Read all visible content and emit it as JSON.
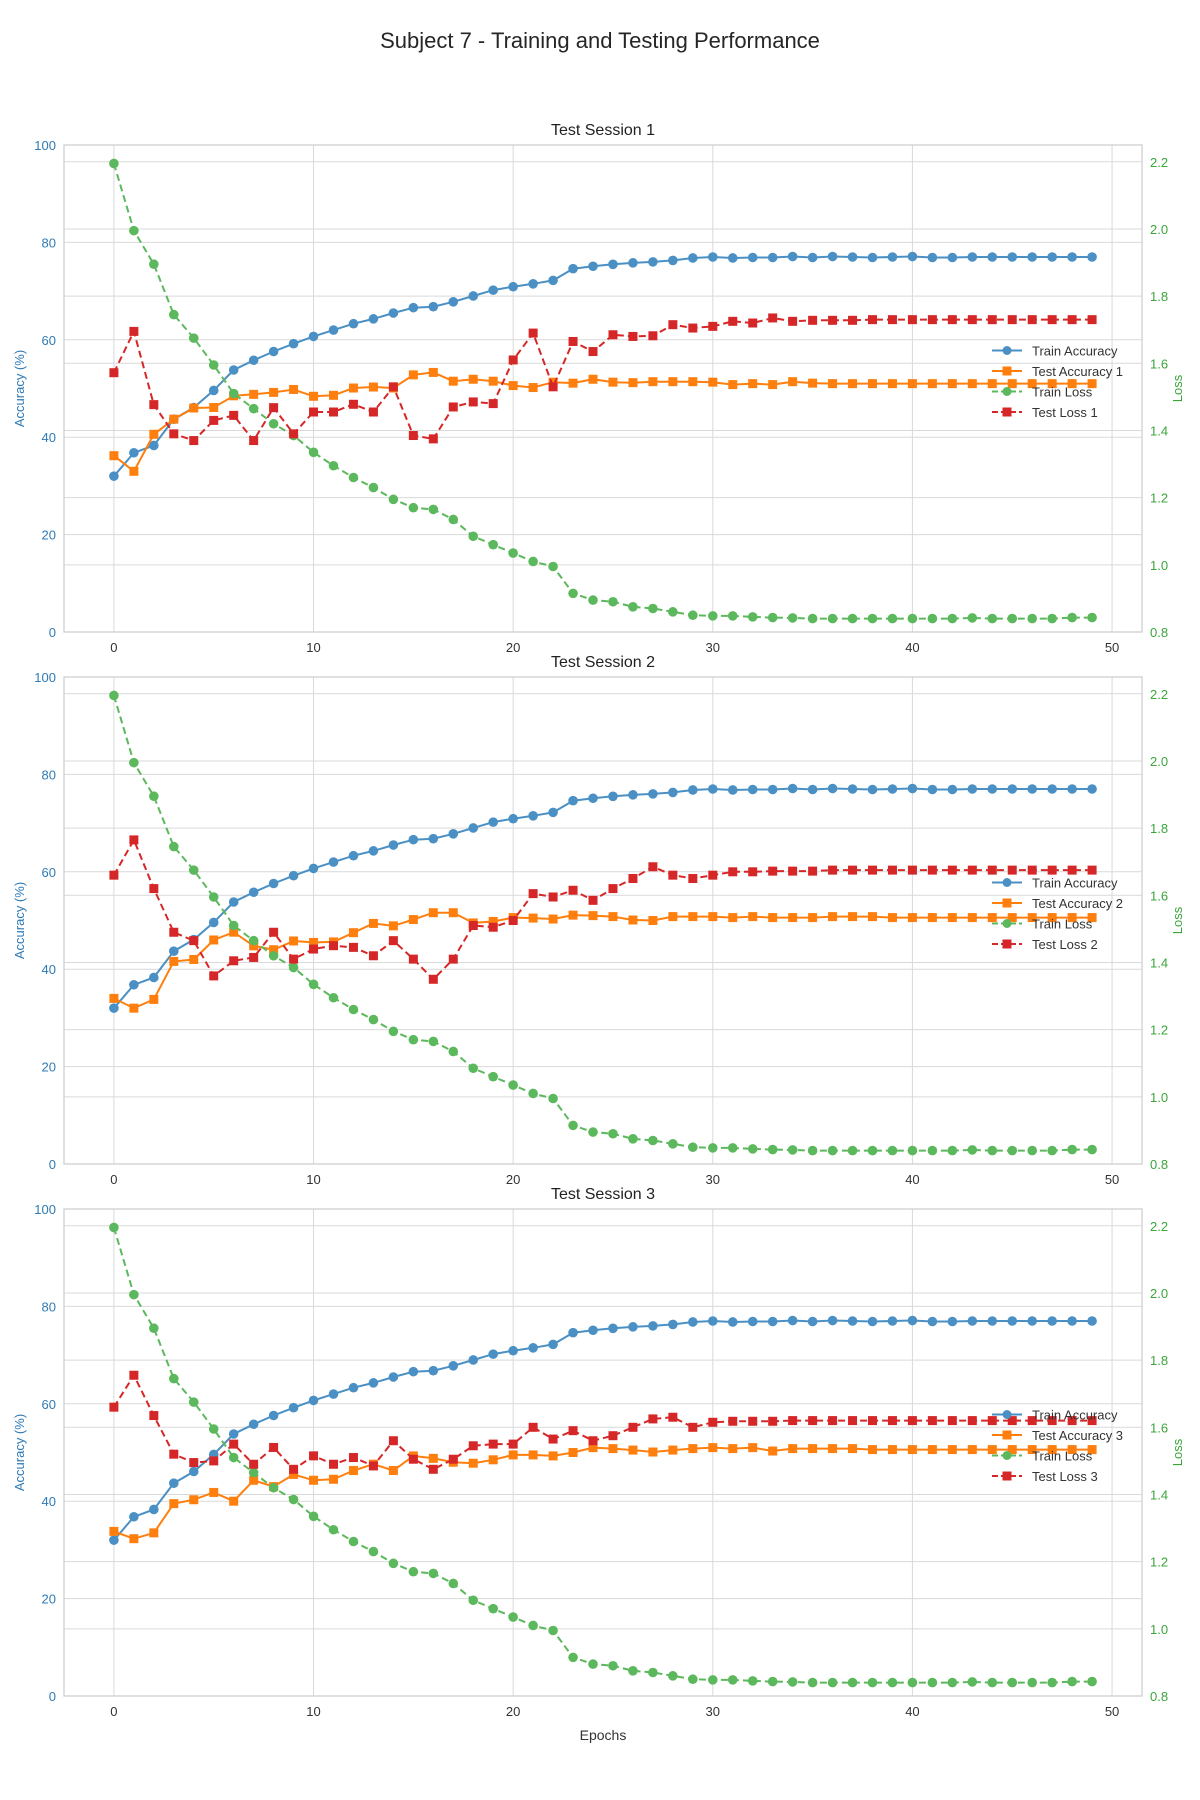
{
  "figure": {
    "title": "Subject 7 - Training and Testing Performance",
    "colors": {
      "train_accuracy": "#4a90c4",
      "test_accuracy": "#ff7f0e",
      "train_loss": "#5cb85c",
      "test_loss": "#d62728",
      "left_axis": "#2f7bb5",
      "right_axis": "#3aa63a",
      "grid": "#d9d9d9",
      "frame": "#cccccc"
    }
  },
  "chart_data": [
    {
      "type": "line",
      "title": "Test Session 1",
      "xlabel": "",
      "ylabel": "Accuracy (%)",
      "y2label": "Loss",
      "xlim": [
        -2.5,
        51.5
      ],
      "ylim": [
        0,
        100
      ],
      "y2lim": [
        0.8,
        2.25
      ],
      "xticks": [
        0,
        10,
        20,
        30,
        40,
        50
      ],
      "yticks": [
        0,
        20,
        40,
        60,
        80,
        100
      ],
      "y2ticks": [
        0.8,
        1.0,
        1.2,
        1.4,
        1.6,
        1.8,
        2.0,
        2.2
      ],
      "grid": true,
      "legend": "center-right",
      "x": [
        0,
        1,
        2,
        3,
        4,
        5,
        6,
        7,
        8,
        9,
        10,
        11,
        12,
        13,
        14,
        15,
        16,
        17,
        18,
        19,
        20,
        21,
        22,
        23,
        24,
        25,
        26,
        27,
        28,
        29,
        30,
        31,
        32,
        33,
        34,
        35,
        36,
        37,
        38,
        39,
        40,
        41,
        42,
        43,
        44,
        45,
        46,
        47,
        48,
        49
      ],
      "series": [
        {
          "name": "Train Accuracy",
          "axis": "left",
          "style": "solid",
          "marker": "circle",
          "values": [
            32.0,
            36.8,
            38.3,
            43.7,
            46.1,
            49.6,
            53.8,
            55.8,
            57.6,
            59.2,
            60.7,
            62.0,
            63.3,
            64.3,
            65.5,
            66.6,
            66.8,
            67.8,
            69.0,
            70.2,
            70.9,
            71.5,
            72.2,
            74.6,
            75.1,
            75.5,
            75.8,
            76.0,
            76.3,
            76.8,
            77.0,
            76.8,
            76.9,
            76.9,
            77.1,
            76.9,
            77.1,
            77.0,
            76.9,
            77.0,
            77.1,
            76.9,
            76.9,
            77.0,
            77.0,
            77.0,
            77.0,
            77.0,
            77.0,
            77.0
          ]
        },
        {
          "name": "Test Accuracy 1",
          "axis": "left",
          "style": "solid",
          "marker": "square",
          "values": [
            36.2,
            33.0,
            40.6,
            43.7,
            46.0,
            46.1,
            48.5,
            48.8,
            49.2,
            49.8,
            48.4,
            48.6,
            50.1,
            50.3,
            50.1,
            52.8,
            53.3,
            51.5,
            51.9,
            51.5,
            50.6,
            50.2,
            51.3,
            51.1,
            51.9,
            51.3,
            51.2,
            51.4,
            51.4,
            51.4,
            51.3,
            50.8,
            51.0,
            50.8,
            51.4,
            51.1,
            51.0,
            51.0,
            51.0,
            51.0,
            51.0,
            51.0,
            51.0,
            51.0,
            51.0,
            51.0,
            51.0,
            51.0,
            51.0,
            51.0
          ]
        },
        {
          "name": "Train Loss",
          "axis": "right",
          "style": "dashed",
          "marker": "circle",
          "values": [
            2.195,
            1.995,
            1.895,
            1.745,
            1.675,
            1.595,
            1.51,
            1.465,
            1.42,
            1.385,
            1.335,
            1.295,
            1.26,
            1.23,
            1.195,
            1.17,
            1.165,
            1.135,
            1.085,
            1.06,
            1.035,
            1.01,
            0.995,
            0.915,
            0.895,
            0.89,
            0.875,
            0.87,
            0.86,
            0.85,
            0.848,
            0.848,
            0.845,
            0.843,
            0.842,
            0.84,
            0.84,
            0.84,
            0.84,
            0.84,
            0.84,
            0.84,
            0.84,
            0.842,
            0.84,
            0.84,
            0.84,
            0.84,
            0.843,
            0.843
          ]
        },
        {
          "name": "Test Loss 1",
          "axis": "right",
          "style": "dashed",
          "marker": "square",
          "values": [
            1.572,
            1.695,
            1.477,
            1.39,
            1.37,
            1.43,
            1.445,
            1.37,
            1.468,
            1.39,
            1.455,
            1.455,
            1.478,
            1.455,
            1.53,
            1.385,
            1.375,
            1.47,
            1.485,
            1.48,
            1.61,
            1.69,
            1.53,
            1.665,
            1.635,
            1.685,
            1.68,
            1.682,
            1.715,
            1.705,
            1.71,
            1.725,
            1.72,
            1.735,
            1.725,
            1.728,
            1.728,
            1.728,
            1.73,
            1.73,
            1.73,
            1.73,
            1.73,
            1.73,
            1.73,
            1.73,
            1.73,
            1.73,
            1.73,
            1.73
          ]
        }
      ]
    },
    {
      "type": "line",
      "title": "Test Session 2",
      "xlabel": "",
      "ylabel": "Accuracy (%)",
      "y2label": "Loss",
      "xlim": [
        -2.5,
        51.5
      ],
      "ylim": [
        0,
        100
      ],
      "y2lim": [
        0.8,
        2.25
      ],
      "xticks": [
        0,
        10,
        20,
        30,
        40,
        50
      ],
      "yticks": [
        0,
        20,
        40,
        60,
        80,
        100
      ],
      "y2ticks": [
        0.8,
        1.0,
        1.2,
        1.4,
        1.6,
        1.8,
        2.0,
        2.2
      ],
      "grid": true,
      "legend": "center-right",
      "x": [
        0,
        1,
        2,
        3,
        4,
        5,
        6,
        7,
        8,
        9,
        10,
        11,
        12,
        13,
        14,
        15,
        16,
        17,
        18,
        19,
        20,
        21,
        22,
        23,
        24,
        25,
        26,
        27,
        28,
        29,
        30,
        31,
        32,
        33,
        34,
        35,
        36,
        37,
        38,
        39,
        40,
        41,
        42,
        43,
        44,
        45,
        46,
        47,
        48,
        49
      ],
      "series": [
        {
          "name": "Train Accuracy",
          "axis": "left",
          "style": "solid",
          "marker": "circle",
          "values": [
            32.0,
            36.8,
            38.3,
            43.7,
            46.1,
            49.6,
            53.8,
            55.8,
            57.6,
            59.2,
            60.7,
            62.0,
            63.3,
            64.3,
            65.5,
            66.6,
            66.8,
            67.8,
            69.0,
            70.2,
            70.9,
            71.5,
            72.2,
            74.6,
            75.1,
            75.5,
            75.8,
            76.0,
            76.3,
            76.8,
            77.0,
            76.8,
            76.9,
            76.9,
            77.1,
            76.9,
            77.1,
            77.0,
            76.9,
            77.0,
            77.1,
            76.9,
            76.9,
            77.0,
            77.0,
            77.0,
            77.0,
            77.0,
            77.0,
            77.0
          ]
        },
        {
          "name": "Test Accuracy 2",
          "axis": "left",
          "style": "solid",
          "marker": "square",
          "values": [
            34.0,
            32.0,
            33.8,
            41.6,
            42.0,
            46.0,
            47.6,
            44.8,
            44.0,
            45.8,
            45.5,
            45.6,
            47.5,
            49.4,
            48.9,
            50.2,
            51.6,
            51.6,
            49.5,
            49.8,
            50.6,
            50.5,
            50.3,
            51.1,
            51.0,
            50.8,
            50.1,
            50.0,
            50.8,
            50.8,
            50.8,
            50.6,
            50.8,
            50.6,
            50.6,
            50.6,
            50.8,
            50.8,
            50.8,
            50.6,
            50.6,
            50.6,
            50.6,
            50.6,
            50.6,
            50.6,
            50.6,
            50.6,
            50.6,
            50.6
          ]
        },
        {
          "name": "Train Loss",
          "axis": "right",
          "style": "dashed",
          "marker": "circle",
          "values": [
            2.195,
            1.995,
            1.895,
            1.745,
            1.675,
            1.595,
            1.51,
            1.465,
            1.42,
            1.385,
            1.335,
            1.295,
            1.26,
            1.23,
            1.195,
            1.17,
            1.165,
            1.135,
            1.085,
            1.06,
            1.035,
            1.01,
            0.995,
            0.915,
            0.895,
            0.89,
            0.875,
            0.87,
            0.86,
            0.85,
            0.848,
            0.848,
            0.845,
            0.843,
            0.842,
            0.84,
            0.84,
            0.84,
            0.84,
            0.84,
            0.84,
            0.84,
            0.84,
            0.842,
            0.84,
            0.84,
            0.84,
            0.84,
            0.843,
            0.843
          ]
        },
        {
          "name": "Test Loss 2",
          "axis": "right",
          "style": "dashed",
          "marker": "square",
          "values": [
            1.66,
            1.765,
            1.62,
            1.49,
            1.465,
            1.36,
            1.405,
            1.415,
            1.49,
            1.41,
            1.44,
            1.45,
            1.445,
            1.42,
            1.465,
            1.41,
            1.35,
            1.41,
            1.51,
            1.505,
            1.525,
            1.605,
            1.595,
            1.615,
            1.585,
            1.62,
            1.65,
            1.685,
            1.66,
            1.65,
            1.66,
            1.67,
            1.67,
            1.672,
            1.672,
            1.672,
            1.675,
            1.675,
            1.675,
            1.675,
            1.675,
            1.675,
            1.675,
            1.675,
            1.675,
            1.675,
            1.675,
            1.675,
            1.675,
            1.675
          ]
        }
      ]
    },
    {
      "type": "line",
      "title": "Test Session 3",
      "xlabel": "Epochs",
      "ylabel": "Accuracy (%)",
      "y2label": "Loss",
      "xlim": [
        -2.5,
        51.5
      ],
      "ylim": [
        0,
        100
      ],
      "y2lim": [
        0.8,
        2.25
      ],
      "xticks": [
        0,
        10,
        20,
        30,
        40,
        50
      ],
      "yticks": [
        0,
        20,
        40,
        60,
        80,
        100
      ],
      "y2ticks": [
        0.8,
        1.0,
        1.2,
        1.4,
        1.6,
        1.8,
        2.0,
        2.2
      ],
      "grid": true,
      "legend": "center-right",
      "x": [
        0,
        1,
        2,
        3,
        4,
        5,
        6,
        7,
        8,
        9,
        10,
        11,
        12,
        13,
        14,
        15,
        16,
        17,
        18,
        19,
        20,
        21,
        22,
        23,
        24,
        25,
        26,
        27,
        28,
        29,
        30,
        31,
        32,
        33,
        34,
        35,
        36,
        37,
        38,
        39,
        40,
        41,
        42,
        43,
        44,
        45,
        46,
        47,
        48,
        49
      ],
      "series": [
        {
          "name": "Train Accuracy",
          "axis": "left",
          "style": "solid",
          "marker": "circle",
          "values": [
            32.0,
            36.8,
            38.3,
            43.7,
            46.1,
            49.6,
            53.8,
            55.8,
            57.6,
            59.2,
            60.7,
            62.0,
            63.3,
            64.3,
            65.5,
            66.6,
            66.8,
            67.8,
            69.0,
            70.2,
            70.9,
            71.5,
            72.2,
            74.6,
            75.1,
            75.5,
            75.8,
            76.0,
            76.3,
            76.8,
            77.0,
            76.8,
            76.9,
            76.9,
            77.1,
            76.9,
            77.1,
            77.0,
            76.9,
            77.0,
            77.1,
            76.9,
            76.9,
            77.0,
            77.0,
            77.0,
            77.0,
            77.0,
            77.0,
            77.0
          ]
        },
        {
          "name": "Test Accuracy 3",
          "axis": "left",
          "style": "solid",
          "marker": "square",
          "values": [
            33.8,
            32.3,
            33.5,
            39.5,
            40.3,
            41.8,
            40.0,
            44.3,
            43.0,
            45.5,
            44.3,
            44.5,
            46.3,
            47.6,
            46.3,
            49.3,
            48.8,
            48.0,
            47.8,
            48.5,
            49.5,
            49.5,
            49.3,
            50.0,
            51.0,
            50.8,
            50.5,
            50.1,
            50.5,
            50.8,
            51.0,
            50.8,
            51.0,
            50.3,
            50.8,
            50.8,
            50.8,
            50.8,
            50.6,
            50.6,
            50.6,
            50.6,
            50.6,
            50.6,
            50.6,
            50.6,
            50.6,
            50.6,
            50.6,
            50.6
          ]
        },
        {
          "name": "Train Loss",
          "axis": "right",
          "style": "dashed",
          "marker": "circle",
          "values": [
            2.195,
            1.995,
            1.895,
            1.745,
            1.675,
            1.595,
            1.51,
            1.465,
            1.42,
            1.385,
            1.335,
            1.295,
            1.26,
            1.23,
            1.195,
            1.17,
            1.165,
            1.135,
            1.085,
            1.06,
            1.035,
            1.01,
            0.995,
            0.915,
            0.895,
            0.89,
            0.875,
            0.87,
            0.86,
            0.85,
            0.848,
            0.848,
            0.845,
            0.843,
            0.842,
            0.84,
            0.84,
            0.84,
            0.84,
            0.84,
            0.84,
            0.84,
            0.84,
            0.842,
            0.84,
            0.84,
            0.84,
            0.84,
            0.843,
            0.843
          ]
        },
        {
          "name": "Test Loss 3",
          "axis": "right",
          "style": "dashed",
          "marker": "square",
          "values": [
            1.66,
            1.755,
            1.635,
            1.52,
            1.495,
            1.5,
            1.55,
            1.49,
            1.54,
            1.475,
            1.515,
            1.49,
            1.51,
            1.485,
            1.56,
            1.505,
            1.475,
            1.505,
            1.545,
            1.55,
            1.55,
            1.6,
            1.565,
            1.59,
            1.56,
            1.575,
            1.6,
            1.625,
            1.63,
            1.6,
            1.615,
            1.618,
            1.618,
            1.618,
            1.62,
            1.62,
            1.62,
            1.62,
            1.62,
            1.62,
            1.62,
            1.62,
            1.62,
            1.62,
            1.62,
            1.62,
            1.62,
            1.62,
            1.62,
            1.62
          ]
        }
      ]
    }
  ]
}
